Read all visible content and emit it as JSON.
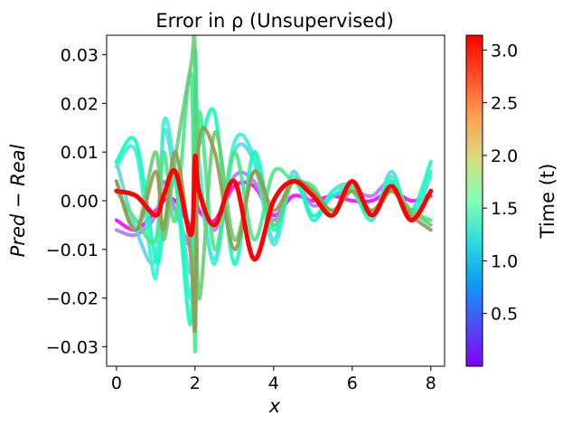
{
  "chart_data": {
    "type": "line",
    "title": "Error in ρ (Unsupervised)",
    "xlabel": "x",
    "ylabel": "Pred − Real",
    "xlim": [
      -0.25,
      8.35
    ],
    "ylim": [
      -0.034,
      0.034
    ],
    "xticks": [
      0,
      2,
      4,
      6,
      8
    ],
    "xtick_labels": [
      "0",
      "2",
      "4",
      "6",
      "8"
    ],
    "yticks": [
      -0.03,
      -0.02,
      -0.01,
      0.0,
      0.01,
      0.02,
      0.03
    ],
    "ytick_labels": [
      "−0.03",
      "−0.02",
      "−0.01",
      "0.00",
      "0.01",
      "0.02",
      "0.03"
    ],
    "grid": false,
    "legend": "none",
    "colormap": "rainbow",
    "color_dimension": "time",
    "colorbar": {
      "label": "Time (t)",
      "range": [
        0.0,
        3.14
      ],
      "ticks": [
        0.5,
        1.0,
        1.5,
        2.0,
        2.5,
        3.0
      ],
      "tick_labels": [
        "0.5",
        "1.0",
        "1.5",
        "2.0",
        "2.5",
        "3.0"
      ]
    },
    "time_snapshots": [
      0.0,
      0.5,
      1.0,
      1.2,
      1.5,
      2.0,
      2.2,
      2.5,
      3.14
    ],
    "x": [
      0,
      0.5,
      1.0,
      1.2,
      1.5,
      1.9,
      2.0,
      2.1,
      2.5,
      3.0,
      3.5,
      4.0,
      4.5,
      5.0,
      5.5,
      6.0,
      6.5,
      7.0,
      7.5,
      8.0
    ],
    "series": [
      {
        "values": [
          -0.004,
          -0.006,
          -0.002,
          0.0,
          0.0,
          -0.005,
          0.002,
          -0.002,
          -0.004,
          0.003,
          0.003,
          -0.003,
          0.001,
          0.0,
          0.001,
          0.0,
          0.0,
          0.002,
          0.0,
          0.001
        ]
      },
      {
        "values": [
          -0.006,
          -0.007,
          -0.003,
          0.004,
          -0.002,
          -0.009,
          0.006,
          0.003,
          -0.006,
          0.005,
          0.004,
          -0.004,
          0.004,
          -0.001,
          0.001,
          0.002,
          0.001,
          0.004,
          -0.002,
          0.002
        ]
      },
      {
        "values": [
          0.008,
          -0.006,
          -0.012,
          0.014,
          0.004,
          -0.015,
          0.012,
          0.004,
          -0.012,
          0.01,
          0.008,
          -0.008,
          0.006,
          -0.004,
          0.002,
          0.003,
          -0.004,
          0.006,
          -0.004,
          0.006
        ]
      },
      {
        "values": [
          0.007,
          0.01,
          -0.016,
          0.016,
          0.006,
          -0.02,
          0.018,
          0.008,
          -0.013,
          0.012,
          0.009,
          -0.009,
          0.005,
          -0.004,
          0.002,
          0.002,
          -0.004,
          0.005,
          -0.003,
          0.005
        ]
      },
      {
        "values": [
          0.008,
          0.012,
          -0.012,
          -0.006,
          0.004,
          -0.025,
          0.03,
          0.012,
          0.018,
          -0.013,
          0.01,
          -0.006,
          0.004,
          -0.003,
          0.001,
          0.002,
          -0.003,
          0.004,
          -0.002,
          0.008
        ]
      },
      {
        "values": [
          0.002,
          -0.004,
          -0.008,
          0.01,
          -0.004,
          0.026,
          -0.031,
          0.018,
          -0.01,
          0.01,
          -0.008,
          0.006,
          0.004,
          0.003,
          -0.003,
          0.003,
          -0.003,
          0.002,
          -0.002,
          -0.004
        ]
      },
      {
        "values": [
          0.004,
          -0.006,
          0.01,
          -0.008,
          0.009,
          0.028,
          0.031,
          -0.02,
          0.014,
          -0.008,
          0.006,
          -0.005,
          0.004,
          0.002,
          -0.002,
          0.002,
          -0.002,
          0.002,
          -0.002,
          -0.005
        ]
      },
      {
        "values": [
          0.004,
          -0.006,
          0.006,
          -0.006,
          0.01,
          -0.012,
          -0.026,
          0.012,
          0.01,
          -0.01,
          0.006,
          -0.002,
          0.004,
          0.002,
          -0.002,
          0.002,
          -0.002,
          0.002,
          -0.003,
          -0.006
        ]
      },
      {
        "values": [
          0.002,
          0.001,
          -0.003,
          0.001,
          0.006,
          -0.007,
          0.009,
          0.002,
          -0.005,
          0.004,
          -0.012,
          0.0,
          0.004,
          0.001,
          -0.003,
          0.004,
          -0.003,
          0.003,
          -0.004,
          0.002
        ]
      }
    ]
  }
}
